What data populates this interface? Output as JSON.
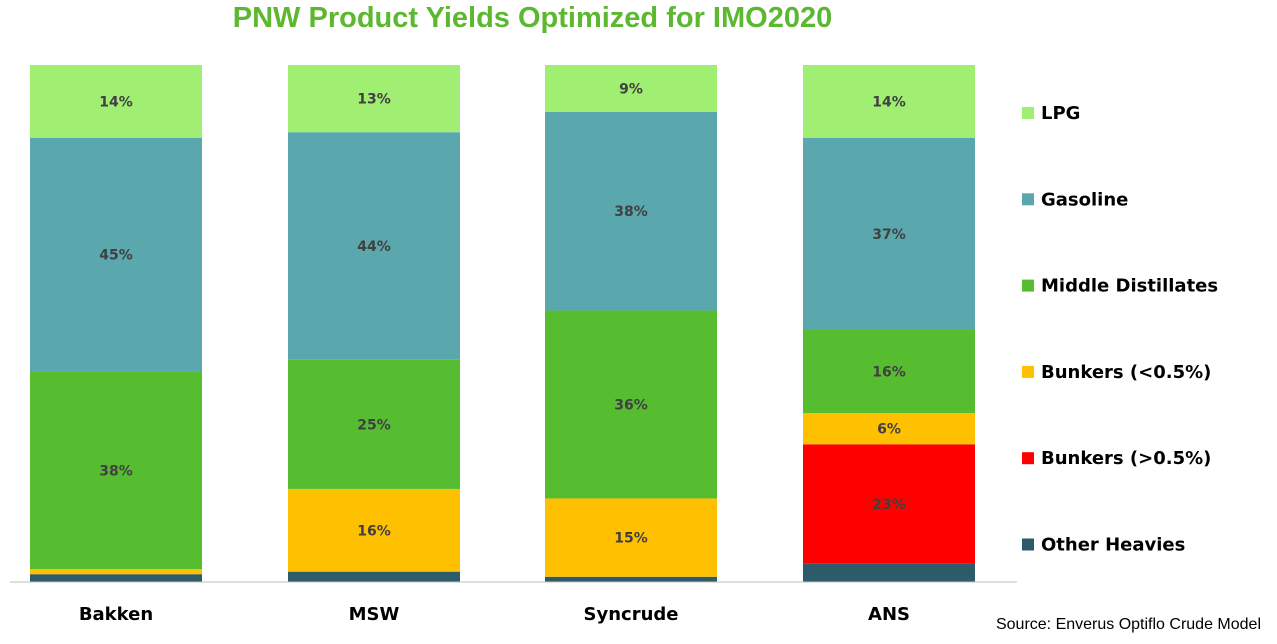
{
  "chart_data": {
    "type": "bar",
    "stacked": true,
    "title": "PNW Product Yields Optimized for IMO2020",
    "source": "Source: Enverus Optiflo Crude Model",
    "categories": [
      "Bakken",
      "MSW",
      "Syncrude",
      "ANS"
    ],
    "ylim": [
      0,
      100
    ],
    "legend_position": "right",
    "series": [
      {
        "name": "Other Heavies",
        "color": "#2e5b69",
        "values": [
          1.5,
          2,
          1,
          3.5
        ],
        "labels": [
          "",
          "",
          "",
          ""
        ]
      },
      {
        "name": "Bunkers (>0.5%)",
        "color": "#ff0000",
        "values": [
          0,
          0,
          0,
          23
        ],
        "labels": [
          "",
          "",
          "",
          "23%"
        ]
      },
      {
        "name": "Bunkers (<0.5%)",
        "color": "#ffc000",
        "values": [
          1,
          16,
          15,
          6
        ],
        "labels": [
          "",
          "16%",
          "15%",
          "6%"
        ]
      },
      {
        "name": "Middle Distillates",
        "color": "#57bd30",
        "values": [
          38,
          25,
          36,
          16
        ],
        "labels": [
          "38%",
          "25%",
          "36%",
          "16%"
        ]
      },
      {
        "name": "Gasoline",
        "color": "#5aa7ae",
        "values": [
          45,
          44,
          38,
          37
        ],
        "labels": [
          "45%",
          "44%",
          "38%",
          "37%"
        ]
      },
      {
        "name": "LPG",
        "color": "#a0ee72",
        "values": [
          14,
          13,
          9,
          14
        ],
        "labels": [
          "14%",
          "13%",
          "9%",
          "14%"
        ]
      }
    ],
    "legend_order": [
      "LPG",
      "Gasoline",
      "Middle Distillates",
      "Bunkers (<0.5%)",
      "Bunkers (>0.5%)",
      "Other Heavies"
    ]
  }
}
